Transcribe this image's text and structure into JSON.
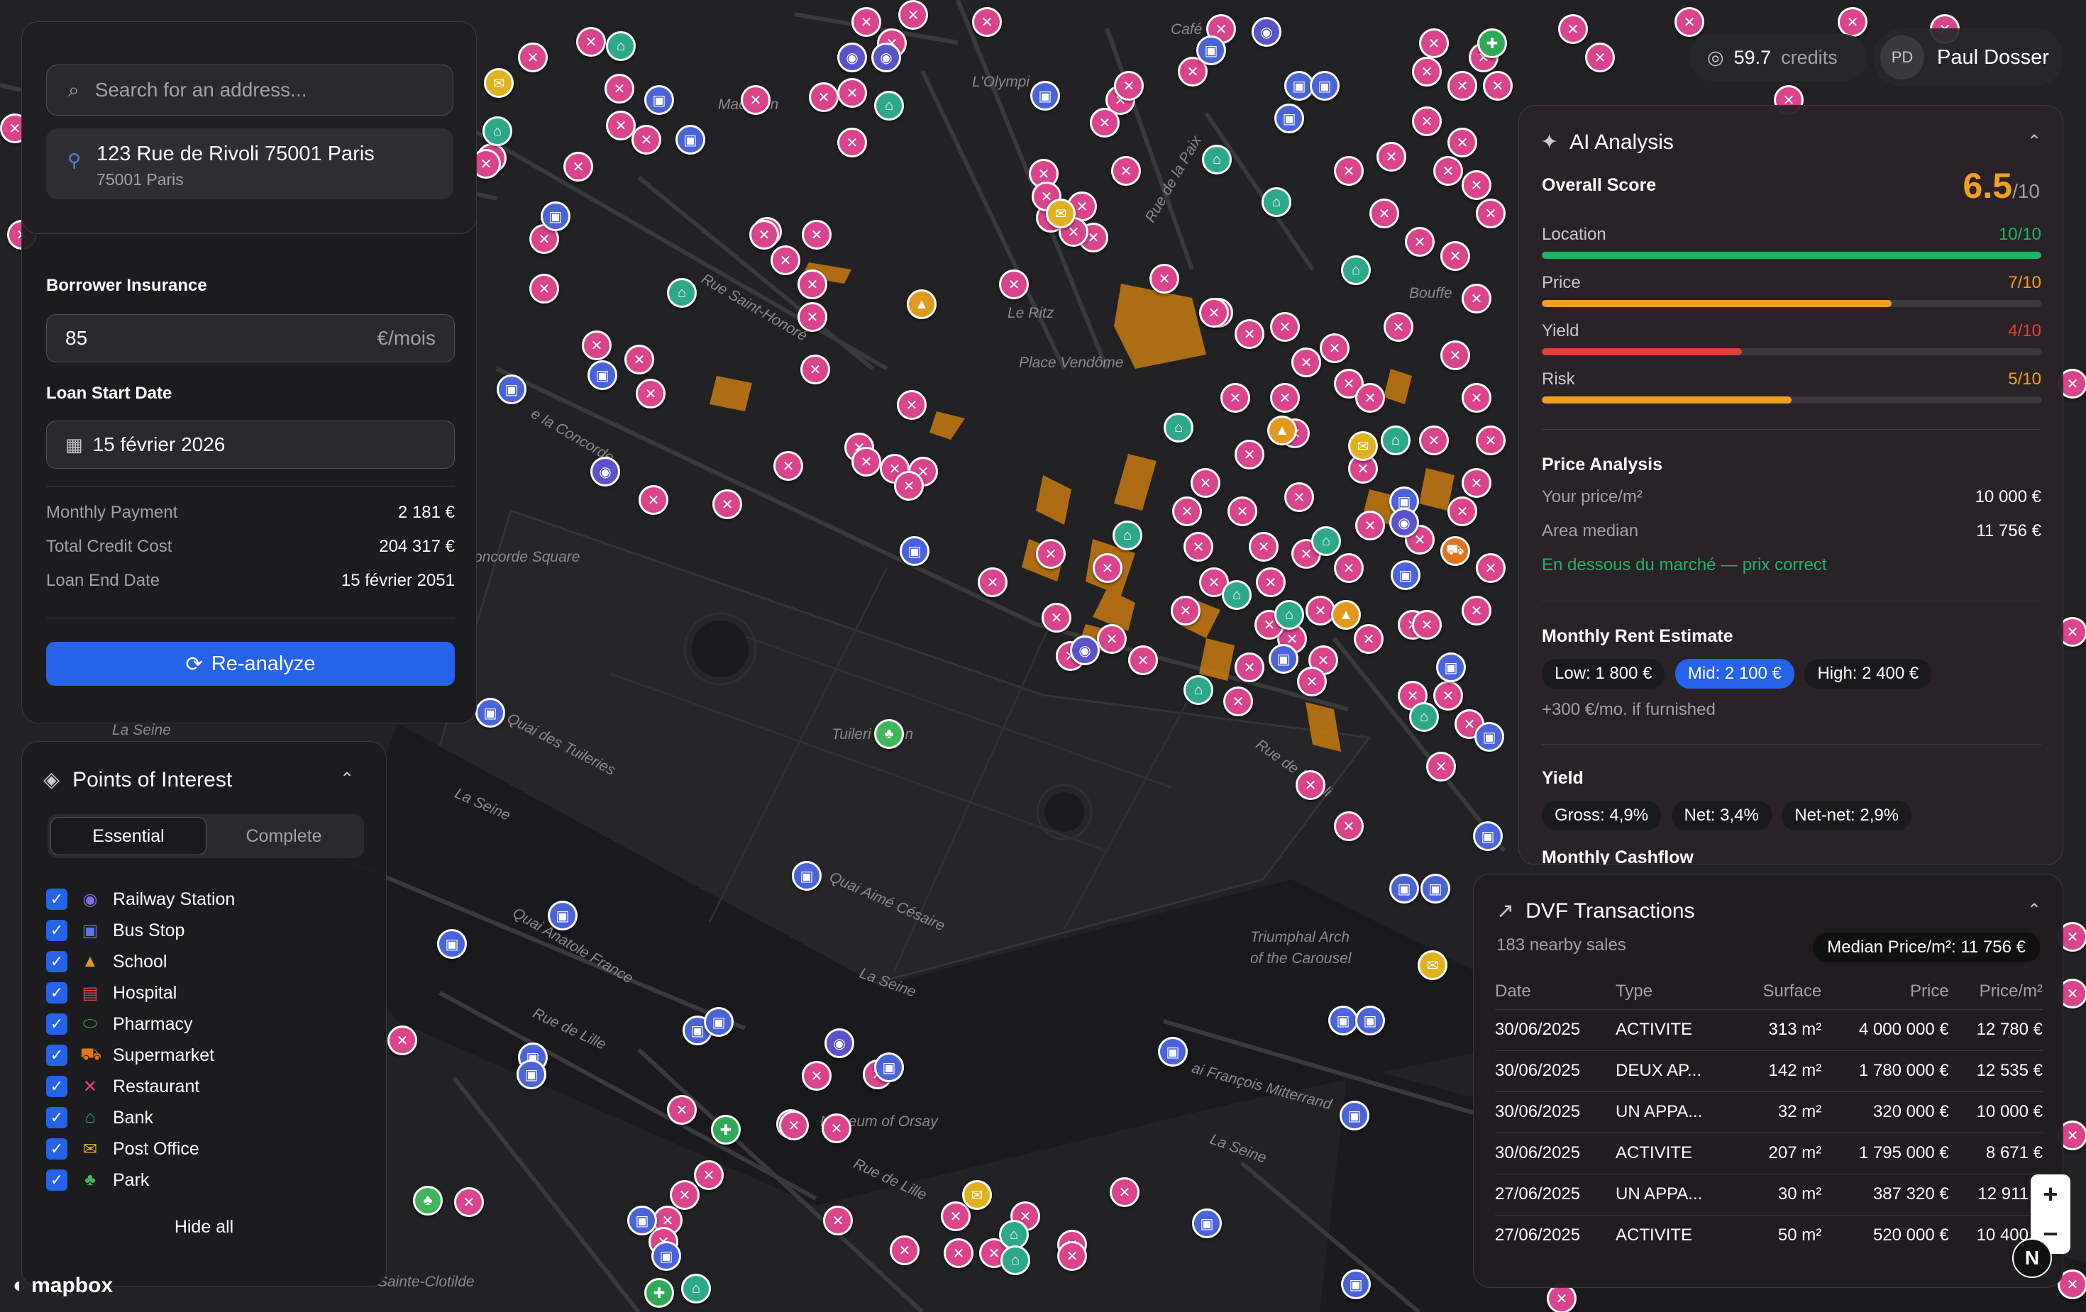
{
  "header": {
    "credits_value": "59.7",
    "credits_label": "credits",
    "user_initials": "PD",
    "user_name": "Paul Dosser"
  },
  "search": {
    "placeholder": "Search for an address...",
    "selected_address": "123 Rue de Rivoli 75001 Paris",
    "selected_city": "75001 Paris"
  },
  "loan": {
    "insurance_label": "Borrower Insurance",
    "insurance_value": "85",
    "insurance_unit": "€/mois",
    "start_label": "Loan Start Date",
    "start_value": "15 février 2026",
    "summary": [
      {
        "label": "Monthly Payment",
        "value": "2 181 €"
      },
      {
        "label": "Total Credit Cost",
        "value": "204 317 €"
      },
      {
        "label": "Loan End Date",
        "value": "15 février 2051"
      }
    ],
    "reanalyze_label": "Re-analyze"
  },
  "poi": {
    "title": "Points of Interest",
    "tabs": [
      "Essential",
      "Complete"
    ],
    "active_tab": "Essential",
    "items": [
      {
        "label": "Railway Station",
        "icon": "railway-icon",
        "color": "#7b6fe0",
        "checked": true
      },
      {
        "label": "Bus Stop",
        "icon": "bus-icon",
        "color": "#5a78e8",
        "checked": true
      },
      {
        "label": "School",
        "icon": "school-icon",
        "color": "#e09a1e",
        "checked": true
      },
      {
        "label": "Hospital",
        "icon": "hospital-icon",
        "color": "#e04444",
        "checked": true
      },
      {
        "label": "Pharmacy",
        "icon": "pharmacy-icon",
        "color": "#31a857",
        "checked": true
      },
      {
        "label": "Supermarket",
        "icon": "supermarket-icon",
        "color": "#e0751e",
        "checked": true
      },
      {
        "label": "Restaurant",
        "icon": "restaurant-icon",
        "color": "#d9448c",
        "checked": true
      },
      {
        "label": "Bank",
        "icon": "bank-icon",
        "color": "#2ea88a",
        "checked": true
      },
      {
        "label": "Post Office",
        "icon": "post-office-icon",
        "color": "#e0b21e",
        "checked": true
      },
      {
        "label": "Park",
        "icon": "park-icon",
        "color": "#43b55b",
        "checked": true
      }
    ],
    "hide_all_label": "Hide all"
  },
  "ai": {
    "title": "AI Analysis",
    "overall_label": "Overall Score",
    "overall_value": "6.5",
    "overall_max": "/10",
    "metrics": [
      {
        "label": "Location",
        "value": "10/10",
        "fraction": 1.0,
        "color": "#22b36b"
      },
      {
        "label": "Price",
        "value": "7/10",
        "fraction": 0.7,
        "color": "#f0a020"
      },
      {
        "label": "Yield",
        "value": "4/10",
        "fraction": 0.4,
        "color": "#e0403a"
      },
      {
        "label": "Risk",
        "value": "5/10",
        "fraction": 0.5,
        "color": "#f0a020"
      }
    ],
    "price_analysis": {
      "title": "Price Analysis",
      "your_price_label": "Your price/m²",
      "your_price_value": "10 000 €",
      "median_label": "Area median",
      "median_value": "11 756 €",
      "verdict": "En dessous du marché — prix correct"
    },
    "rent": {
      "title": "Monthly Rent Estimate",
      "low": "Low: 1 800 €",
      "mid": "Mid: 2 100 €",
      "high": "High: 2 400 €",
      "note": "+300 €/mo. if furnished"
    },
    "yield": {
      "title": "Yield",
      "gross": "Gross: 4,9%",
      "net": "Net: 3,4%",
      "netnet": "Net-net: 2,9%"
    },
    "cashflow_title": "Monthly Cashflow"
  },
  "dvf": {
    "title": "DVF Transactions",
    "subtitle": "183 nearby sales",
    "median_chip": "Median Price/m²: 11 756 €",
    "columns": [
      "Date",
      "Type",
      "Surface",
      "Price",
      "Price/m²"
    ],
    "rows": [
      [
        "30/06/2025",
        "ACTIVITE",
        "313 m²",
        "4 000 000 €",
        "12 780 €"
      ],
      [
        "30/06/2025",
        "DEUX AP...",
        "142 m²",
        "1 780 000 €",
        "12 535 €"
      ],
      [
        "30/06/2025",
        "UN APPA...",
        "32 m²",
        "320 000 €",
        "10 000 €"
      ],
      [
        "30/06/2025",
        "ACTIVITE",
        "207 m²",
        "1 795 000 €",
        "8 671 €"
      ],
      [
        "27/06/2025",
        "UN APPA...",
        "30 m²",
        "387 320 €",
        "12 911 €"
      ],
      [
        "27/06/2025",
        "ACTIVITE",
        "50 m²",
        "520 000 €",
        "10 400 €"
      ]
    ]
  },
  "map": {
    "labels": {
      "rue_saint_honore": "Rue Saint-Honoré",
      "le_ritz": "Le Ritz",
      "place_vendome": "Place Vendôme",
      "rue_de_la_paix": "Rue de la Paix",
      "concorde_square": "oncorde Square",
      "rue_de_la_concorde": "e la Concorde",
      "la_seine_1": "La Seine",
      "la_seine_2": "La Seine",
      "la_seine_3": "La Seine",
      "la_seine_4": "La Seine",
      "quai_tuileries": "Quai des Tuileries",
      "quai_aime_cesaire": "Quai Aimé Césaire",
      "tuileries_garden": "Tuileri  arden",
      "rue_de_rivoli": "Rue de Rivoli",
      "triumphal_arch": "Triumphal Arch",
      "of_the_carousel": "of the Carousel",
      "museum_orsay": "Museum of Orsay",
      "rue_de_lille": "Rue de Lille",
      "rue_de_lille_2": "Rue de Lille",
      "quai_francois_mitterrand": "ai François Mitterrand",
      "quai_anatole_france": "Quai Anatole France",
      "sainte_clotilde": "Sainte-Clotilde",
      "bouffes": "Bouffe",
      "cafe": "Café",
      "madeleine": "Madelein",
      "olympia": "L'Olympi",
      "mapbox": "mapbox"
    }
  }
}
